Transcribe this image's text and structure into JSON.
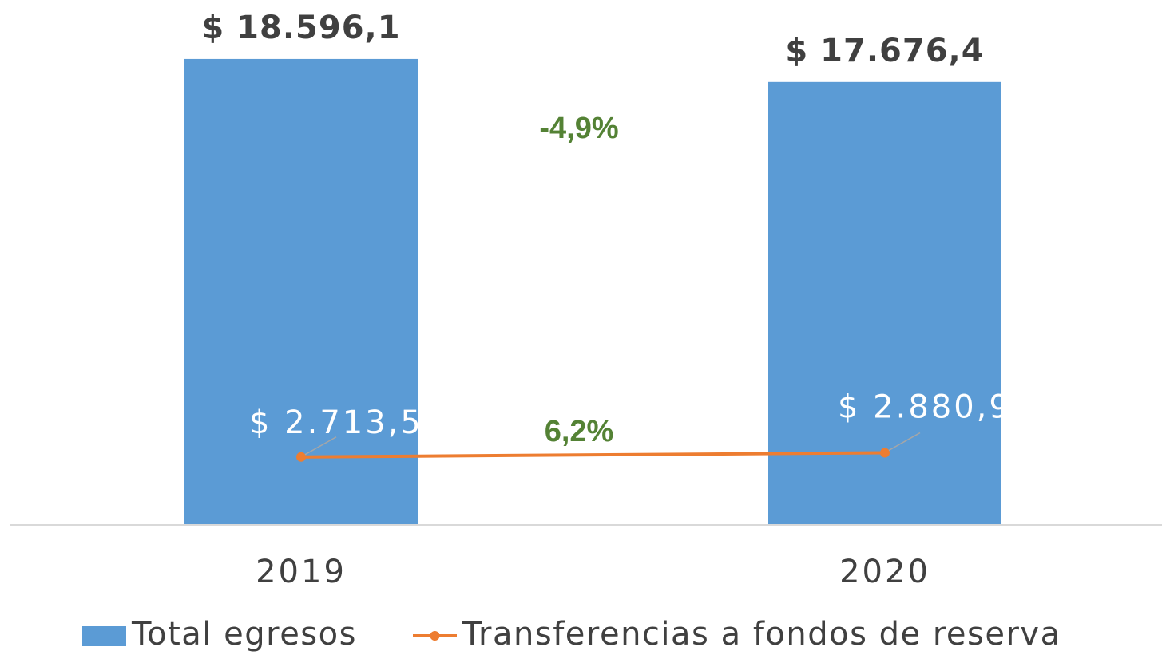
{
  "chart_data": {
    "type": "bar",
    "categories": [
      "2019",
      "2020"
    ],
    "series": [
      {
        "name": "Total egresos",
        "type": "bar",
        "color": "#5b9bd5",
        "values": [
          18596.1,
          17676.4
        ],
        "value_labels": [
          "$ 18.596,1",
          "$ 17.676,4"
        ]
      },
      {
        "name": "Transferencias a fondos de reserva",
        "type": "line",
        "color": "#ed7d31",
        "values": [
          2713.5,
          2880.9
        ],
        "value_labels": [
          "$ 2.713,5",
          "$ 2.880,9"
        ]
      }
    ],
    "annotations": [
      {
        "text": "-4,9%",
        "color": "#548235"
      },
      {
        "text": "6,2%",
        "color": "#548235"
      }
    ],
    "ylim": [
      0,
      20950
    ],
    "legend": "bottom"
  }
}
